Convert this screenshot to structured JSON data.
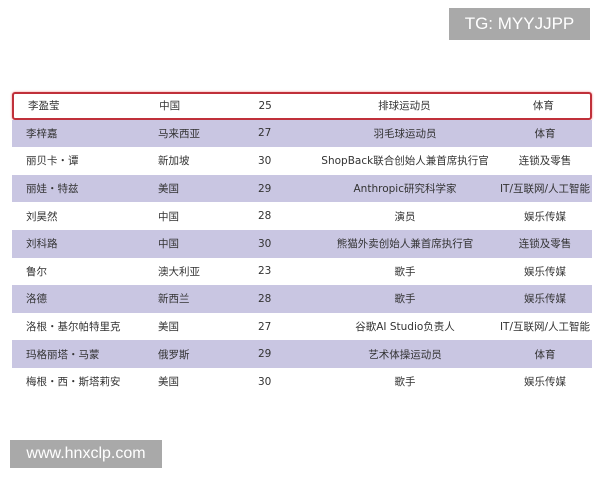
{
  "watermarks": {
    "top": "TG: MYYJJPP",
    "bottom": "www.hnxclp.com"
  },
  "highlight_color": "#c0303a",
  "stripe_color": "#c9c6e2",
  "rows": [
    {
      "name": "李盈莹",
      "country": "中国",
      "age": "25",
      "title": "排球运动员",
      "industry": "体育"
    },
    {
      "name": "李梓嘉",
      "country": "马来西亚",
      "age": "27",
      "title": "羽毛球运动员",
      "industry": "体育"
    },
    {
      "name": "丽贝卡・谭",
      "country": "新加坡",
      "age": "30",
      "title": "ShopBack联合创始人兼首席执行官",
      "industry": "连锁及零售"
    },
    {
      "name": "丽娃・特兹",
      "country": "美国",
      "age": "29",
      "title": "Anthropic研究科学家",
      "industry": "IT/互联网/人工智能"
    },
    {
      "name": "刘昊然",
      "country": "中国",
      "age": "28",
      "title": "演员",
      "industry": "娱乐传媒"
    },
    {
      "name": "刘科路",
      "country": "中国",
      "age": "30",
      "title": "熊猫外卖创始人兼首席执行官",
      "industry": "连锁及零售"
    },
    {
      "name": "鲁尔",
      "country": "澳大利亚",
      "age": "23",
      "title": "歌手",
      "industry": "娱乐传媒"
    },
    {
      "name": "洛德",
      "country": "新西兰",
      "age": "28",
      "title": "歌手",
      "industry": "娱乐传媒"
    },
    {
      "name": "洛根・基尔帕特里克",
      "country": "美国",
      "age": "27",
      "title": "谷歌AI Studio负责人",
      "industry": "IT/互联网/人工智能"
    },
    {
      "name": "玛格丽塔・马蒙",
      "country": "俄罗斯",
      "age": "29",
      "title": "艺术体操运动员",
      "industry": "体育"
    },
    {
      "name": "梅根・西・斯塔莉安",
      "country": "美国",
      "age": "30",
      "title": "歌手",
      "industry": "娱乐传媒"
    }
  ]
}
